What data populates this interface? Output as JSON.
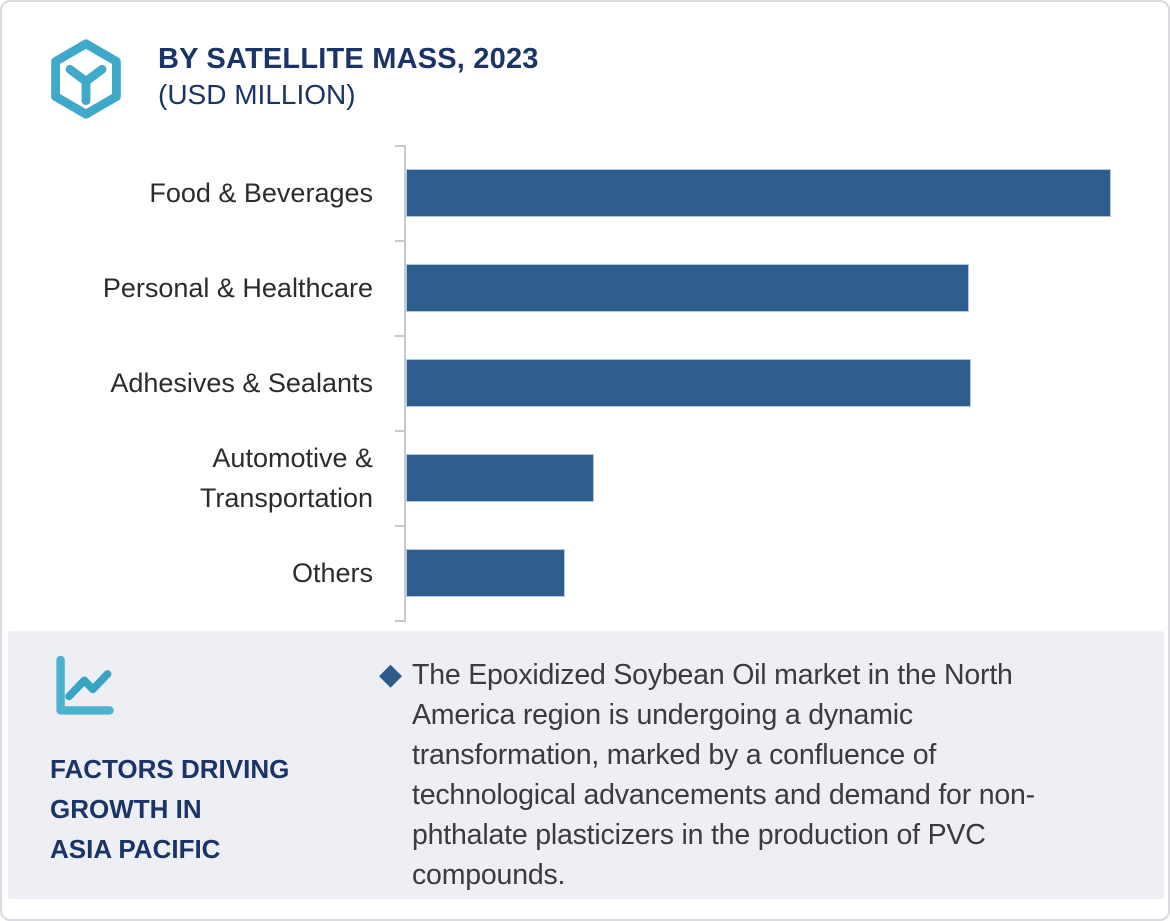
{
  "header": {
    "title": "BY SATELLITE MASS, 2023",
    "subtitle": "(USD MILLION)",
    "logo_icon": "hexagon-cube-icon"
  },
  "chart_data": {
    "type": "bar",
    "orientation": "horizontal",
    "title": "BY SATELLITE MASS, 2023 (USD MILLION)",
    "categories": [
      "Food & Beverages",
      "Personal & Healthcare",
      "Adhesives & Sealants",
      "Automotive & Transportation",
      "Others"
    ],
    "values": [
      100,
      79.8,
      80.1,
      26.5,
      22.3
    ],
    "value_note": "no numeric axis labels or gridlines shown; values estimated from bar lengths relative to longest bar = 100",
    "xlim": [
      0,
      101.5
    ],
    "grid": false,
    "legend": false,
    "bar_color": "#2d5e8d"
  },
  "factors_panel": {
    "icon": "line-chart-icon",
    "heading_lines": [
      "FACTORS DRIVING",
      "GROWTH IN",
      "ASIA PACIFIC"
    ],
    "bullet_icon": "diamond-bullet",
    "bullet_text": "The Epoxidized Soybean Oil market in the North America region is undergoing a dynamic transformation, marked by a confluence of technological advancements and demand for non-phthalate plasticizers in the production of PVC compounds."
  },
  "colors": {
    "accent_teal": "#3fa9c9",
    "navy_text": "#1a3468",
    "bar_blue": "#2d5e8d",
    "diamond_blue": "#2d5c8c",
    "panel_bg": "#edeff4",
    "body_text": "#3b3b3d",
    "axis_gray": "#c8cacd",
    "card_border": "#d9dbe1"
  }
}
